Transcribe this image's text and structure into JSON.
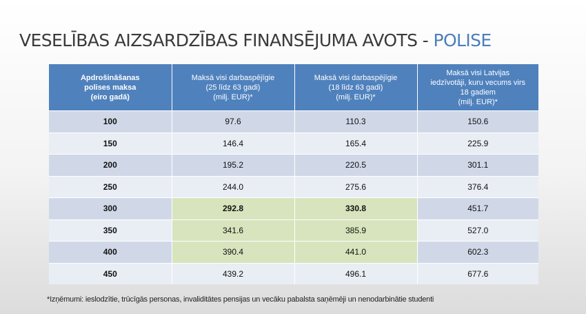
{
  "title": {
    "main": "VESELĪBAS AIZSARDZĪBAS FINANSĒJUMA AVOTS - ",
    "accent": "POLISE"
  },
  "table": {
    "headers": [
      [
        "Apdrošināšanas",
        "polises maksa",
        "(eiro gadā)"
      ],
      [
        "Maksā visi darbaspējīgie",
        "(25 līdz 63 gadi)",
        "(milj. EUR)*"
      ],
      [
        "Maksā visi darbaspējīgie",
        "(18 līdz 63 gadi)",
        "(milj. EUR)*"
      ],
      [
        "Maksā visi Latvijas",
        "iedzīvotāji, kuru vecums virs",
        "18 gadiem",
        "(milj. EUR)*"
      ]
    ],
    "rows": [
      [
        "100",
        "97.6",
        "110.3",
        "150.6"
      ],
      [
        "150",
        "146.4",
        "165.4",
        "225.9"
      ],
      [
        "200",
        "195.2",
        "220.5",
        "301.1"
      ],
      [
        "250",
        "244.0",
        "275.6",
        "376.4"
      ],
      [
        "300",
        "292.8",
        "330.8",
        "451.7"
      ],
      [
        "350",
        "341.6",
        "385.9",
        "527.0"
      ],
      [
        "400",
        "390.4",
        "441.0",
        "602.3"
      ],
      [
        "450",
        "439.2",
        "496.1",
        "677.6"
      ]
    ],
    "highlighted_rows": [
      4,
      5,
      6
    ],
    "highlighted_cols": [
      1,
      2
    ],
    "bold_cells": [
      [
        4,
        1
      ],
      [
        4,
        2
      ]
    ]
  },
  "footnote": "*Izņēmumi: ieslodzītie, trūcīgās personas, invaliditātes pensijas un vecāku pabalsta saņēmēji un nenodarbinātie studenti",
  "colors": {
    "header": "#4f81bd",
    "row_odd": "#d0d8e8",
    "row_even": "#e9edf4",
    "highlight": "#d7e4bd",
    "accent": "#4a7ebb"
  }
}
